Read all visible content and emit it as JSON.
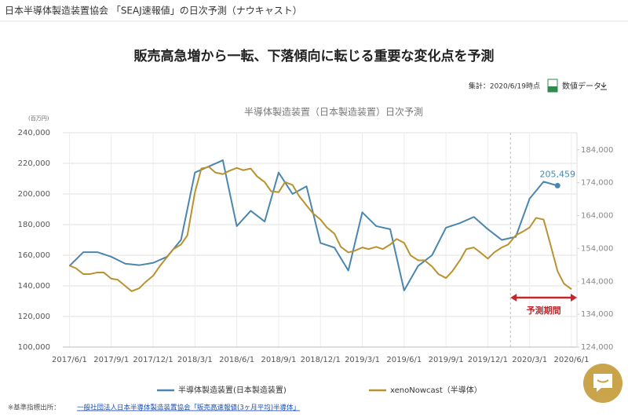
{
  "header": {
    "title": "日本半導体製造装置協会 「SEAJ速報値」の日次予測（ナウキャスト）",
    "headline": "販売高急増から一転、下落傾向に転じる重要な変化点を予測",
    "as_of": "集計：2020/6/19時点",
    "download": "数値データ"
  },
  "chart_data": {
    "type": "line",
    "title": "半導体製造装置（日本製造装置）日次予測",
    "ylabel": "(百万円)",
    "xlim": [
      "2017/5/17",
      "2020/6/13"
    ],
    "xticks": [
      "2017/6/1",
      "2017/9/1",
      "2017/12/1",
      "2018/3/1",
      "2018/6/1",
      "2018/9/1",
      "2018/12/1",
      "2019/3/1",
      "2019/6/1",
      "2019/9/1",
      "2019/12/1",
      "2020/3/1",
      "2020/6/1"
    ],
    "ylim": [
      100000,
      240000
    ],
    "yticks": [
      {
        "value": 100000,
        "label": "100,000"
      },
      {
        "value": 120000,
        "label": "120,000"
      },
      {
        "value": 140000,
        "label": "140,000"
      },
      {
        "value": 160000,
        "label": "160,000"
      },
      {
        "value": 180000,
        "label": "180,000"
      },
      {
        "value": 200000,
        "label": "200,000"
      },
      {
        "value": 220000,
        "label": "220,000"
      },
      {
        "value": 240000,
        "label": "240,000"
      }
    ],
    "y2lim": [
      124000,
      189200
    ],
    "y2ticks": [
      {
        "value": 124000,
        "label": "124,000"
      },
      {
        "value": 134000,
        "label": "134,000"
      },
      {
        "value": 144000,
        "label": "144,000"
      },
      {
        "value": 154000,
        "label": "154,000"
      },
      {
        "value": 164000,
        "label": "164,000"
      },
      {
        "value": 174000,
        "label": "174,000"
      },
      {
        "value": 184000,
        "label": "184,000"
      }
    ],
    "grid": true,
    "series": [
      {
        "name": "半導体製造装置(日本製造装置)",
        "color": "#4a86ad",
        "axis": "y",
        "x": [
          "2017/6/1",
          "2017/7/1",
          "2017/8/1",
          "2017/9/1",
          "2017/10/1",
          "2017/11/1",
          "2017/12/1",
          "2018/1/1",
          "2018/2/1",
          "2018/3/1",
          "2018/4/1",
          "2018/5/1",
          "2018/6/1",
          "2018/7/1",
          "2018/8/1",
          "2018/9/1",
          "2018/10/1",
          "2018/11/1",
          "2018/12/1",
          "2019/1/1",
          "2019/2/1",
          "2019/3/1",
          "2019/4/1",
          "2019/5/1",
          "2019/6/1",
          "2019/7/1",
          "2019/8/1",
          "2019/9/1",
          "2019/10/1",
          "2019/11/1",
          "2019/12/1",
          "2020/1/1",
          "2020/2/1",
          "2020/3/1",
          "2020/4/1",
          "2020/5/1"
        ],
        "values": [
          153000,
          162000,
          162000,
          159000,
          154500,
          153500,
          155000,
          159000,
          170000,
          214000,
          218000,
          222000,
          179000,
          189000,
          182000,
          214000,
          200000,
          205000,
          168000,
          165000,
          150000,
          188000,
          179000,
          177000,
          137000,
          153000,
          160000,
          178000,
          181000,
          185000,
          177000,
          170000,
          172000,
          197000,
          208000,
          205459
        ],
        "value_labels": [
          null,
          null,
          null,
          null,
          null,
          null,
          null,
          null,
          null,
          null,
          null,
          null,
          null,
          null,
          null,
          null,
          null,
          null,
          null,
          null,
          null,
          null,
          null,
          null,
          null,
          null,
          null,
          null,
          null,
          null,
          null,
          null,
          null,
          null,
          null,
          "205,459"
        ]
      },
      {
        "name": "xenoNowcast（半導体）",
        "color": "#b8922f",
        "axis": "y2",
        "x": [
          "2017/6/1",
          "2017/6/15",
          "2017/7/1",
          "2017/7/15",
          "2017/8/1",
          "2017/8/15",
          "2017/9/1",
          "2017/9/15",
          "2017/10/1",
          "2017/10/15",
          "2017/11/1",
          "2017/11/15",
          "2017/12/1",
          "2017/12/15",
          "2018/1/1",
          "2018/1/15",
          "2018/2/1",
          "2018/2/15",
          "2018/3/1",
          "2018/3/15",
          "2018/4/1",
          "2018/4/15",
          "2018/5/1",
          "2018/5/15",
          "2018/6/1",
          "2018/6/15",
          "2018/7/1",
          "2018/7/15",
          "2018/8/1",
          "2018/8/15",
          "2018/9/1",
          "2018/9/15",
          "2018/10/1",
          "2018/10/15",
          "2018/11/1",
          "2018/11/15",
          "2018/12/1",
          "2018/12/15",
          "2019/1/1",
          "2019/1/15",
          "2019/2/1",
          "2019/2/15",
          "2019/3/1",
          "2019/3/15",
          "2019/4/1",
          "2019/4/15",
          "2019/5/1",
          "2019/5/15",
          "2019/6/1",
          "2019/6/15",
          "2019/7/1",
          "2019/7/15",
          "2019/8/1",
          "2019/8/15",
          "2019/9/1",
          "2019/9/15",
          "2019/10/1",
          "2019/10/15",
          "2019/11/1",
          "2019/11/15",
          "2019/12/1",
          "2019/12/15",
          "2020/1/1",
          "2020/1/15",
          "2020/2/1",
          "2020/2/15",
          "2020/3/1",
          "2020/3/15",
          "2020/4/1",
          "2020/4/15",
          "2020/5/1",
          "2020/5/15",
          "2020/6/1"
        ],
        "values": [
          148800,
          148000,
          146200,
          146200,
          146700,
          146700,
          144800,
          144500,
          142600,
          141000,
          141900,
          143800,
          145700,
          148500,
          151400,
          153800,
          155200,
          158000,
          171100,
          178300,
          178800,
          177100,
          176600,
          177600,
          178500,
          177800,
          178300,
          175900,
          174200,
          171400,
          171100,
          174200,
          173300,
          170000,
          167100,
          164700,
          162800,
          160400,
          158500,
          154500,
          152800,
          153300,
          154300,
          153800,
          154500,
          153800,
          155200,
          156900,
          155700,
          151900,
          150400,
          150400,
          148500,
          146200,
          145000,
          147100,
          150400,
          153800,
          154300,
          152800,
          150900,
          152800,
          154300,
          155200,
          158000,
          159000,
          160400,
          163300,
          162800,
          155700,
          147100,
          143300,
          141600
        ]
      }
    ],
    "forecast": {
      "label": "予測期間",
      "start": "2020/1/20",
      "end": "2020/6/13"
    },
    "legend": "bottom"
  },
  "footer": {
    "source_label": "※基準指標出所：",
    "source_link": "一般社団法人日本半導体製造装置協会「販売高速報値(3ヶ月平均)半導体」"
  }
}
